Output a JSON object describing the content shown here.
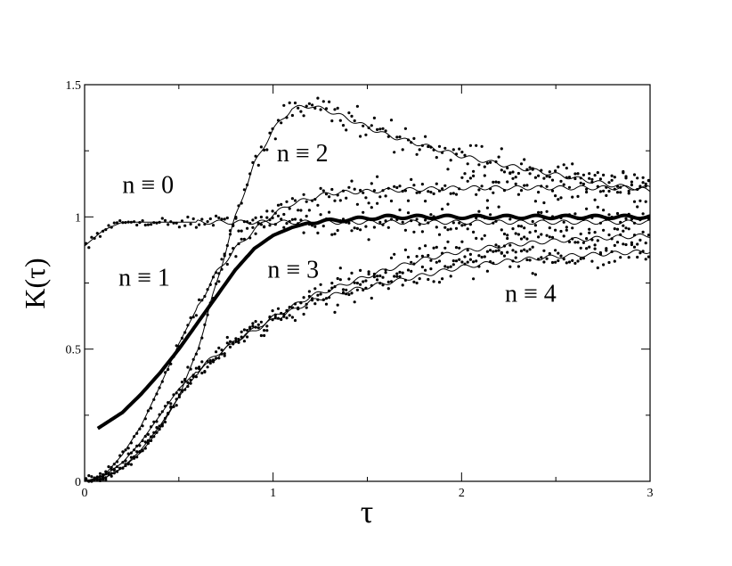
{
  "chart_data": {
    "type": "scatter",
    "xlabel": "τ",
    "ylabel": "K(τ)",
    "xlim": [
      0,
      3
    ],
    "ylim": [
      0,
      1.5
    ],
    "x_ticks": [
      "0",
      "1",
      "2",
      "3"
    ],
    "y_ticks": [
      "0",
      "0.5",
      "1",
      "1.5"
    ],
    "grid": false,
    "annotations": [
      {
        "text": "n ≡ 0",
        "x": 0.2,
        "y": 1.09
      },
      {
        "text": "n ≡ 1",
        "x": 0.18,
        "y": 0.74
      },
      {
        "text": "n ≡ 2",
        "x": 1.02,
        "y": 1.21
      },
      {
        "text": "n ≡ 3",
        "x": 0.97,
        "y": 0.77
      },
      {
        "text": "n ≡ 4",
        "x": 2.23,
        "y": 0.68
      }
    ],
    "series": [
      {
        "curve": "n≡0",
        "style": "points+thin",
        "x": [
          0,
          0.1,
          0.2,
          0.4,
          0.7,
          1.0,
          1.3,
          2.0,
          3.0
        ],
        "y": [
          0.89,
          0.95,
          0.98,
          0.98,
          0.98,
          0.98,
          0.98,
          0.98,
          0.98
        ]
      },
      {
        "curve": "n≡1",
        "style": "points+thin",
        "x": [
          0,
          0.1,
          0.2,
          0.3,
          0.4,
          0.5,
          0.6,
          0.7,
          0.8,
          0.9,
          1.0,
          1.1,
          1.3,
          1.6,
          2.0,
          2.5,
          3.0
        ],
        "y": [
          0,
          0.02,
          0.1,
          0.21,
          0.36,
          0.52,
          0.66,
          0.79,
          0.88,
          0.95,
          1.01,
          1.05,
          1.09,
          1.1,
          1.11,
          1.11,
          1.11
        ]
      },
      {
        "curve": "n≡2",
        "style": "points+thin",
        "x": [
          0,
          0.1,
          0.2,
          0.3,
          0.4,
          0.5,
          0.6,
          0.7,
          0.8,
          0.9,
          1.0,
          1.1,
          1.2,
          1.3,
          1.4,
          1.6,
          1.8,
          2.0,
          2.2,
          2.5,
          2.8,
          3.0
        ],
        "y": [
          0,
          0.01,
          0.05,
          0.11,
          0.2,
          0.32,
          0.5,
          0.75,
          1.0,
          1.2,
          1.33,
          1.41,
          1.42,
          1.4,
          1.37,
          1.31,
          1.27,
          1.23,
          1.2,
          1.16,
          1.12,
          1.1
        ]
      },
      {
        "curve": "n≡3",
        "style": "points+thin",
        "x": [
          0,
          0.1,
          0.2,
          0.3,
          0.4,
          0.5,
          0.6,
          0.7,
          0.8,
          1.0,
          1.2,
          1.4,
          1.6,
          1.8,
          2.0,
          2.2,
          2.5,
          3.0
        ],
        "y": [
          0,
          0.02,
          0.07,
          0.15,
          0.25,
          0.35,
          0.42,
          0.48,
          0.53,
          0.62,
          0.7,
          0.75,
          0.8,
          0.84,
          0.87,
          0.89,
          0.91,
          0.93
        ]
      },
      {
        "curve": "n≡4",
        "style": "points+thin",
        "x": [
          0,
          0.1,
          0.2,
          0.3,
          0.4,
          0.5,
          0.6,
          0.7,
          0.8,
          1.0,
          1.2,
          1.4,
          1.6,
          1.8,
          2.0,
          2.2,
          2.5,
          3.0
        ],
        "y": [
          0,
          0.01,
          0.05,
          0.12,
          0.21,
          0.32,
          0.41,
          0.47,
          0.53,
          0.61,
          0.68,
          0.72,
          0.75,
          0.78,
          0.81,
          0.83,
          0.85,
          0.87
        ]
      },
      {
        "curve": "thick",
        "style": "thick-line",
        "x": [
          0.07,
          0.2,
          0.3,
          0.4,
          0.5,
          0.6,
          0.7,
          0.8,
          0.9,
          1.0,
          1.1,
          1.2,
          1.4,
          1.6,
          1.8,
          2.0,
          2.5,
          3.0
        ],
        "y": [
          0.2,
          0.26,
          0.33,
          0.41,
          0.5,
          0.6,
          0.7,
          0.8,
          0.88,
          0.93,
          0.96,
          0.98,
          0.99,
          1.0,
          1.0,
          1.0,
          1.0,
          1.0
        ]
      }
    ]
  }
}
